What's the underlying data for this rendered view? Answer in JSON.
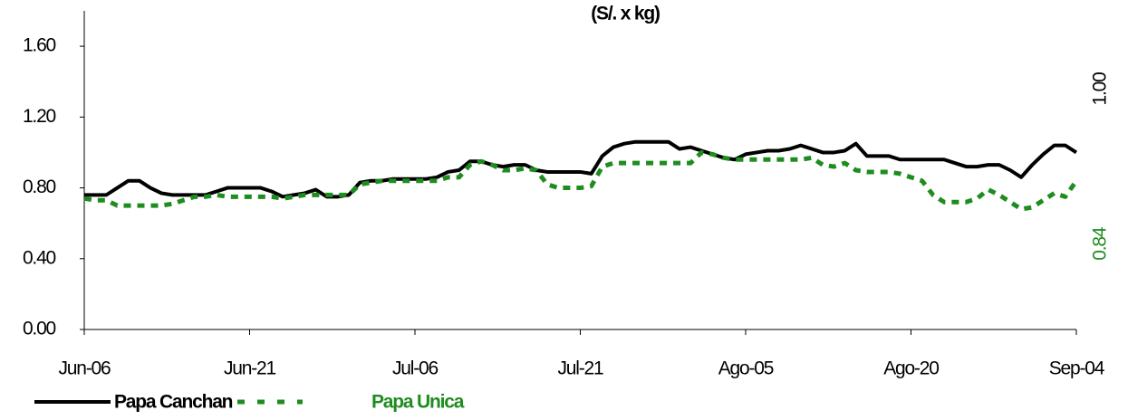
{
  "chart_data": {
    "type": "line",
    "title": "(S/. x kg)",
    "categories": [
      "Jun-06",
      null,
      null,
      null,
      null,
      null,
      null,
      null,
      null,
      null,
      null,
      null,
      null,
      null,
      null,
      "Jun-21",
      null,
      null,
      null,
      null,
      null,
      null,
      null,
      null,
      null,
      null,
      null,
      null,
      null,
      null,
      "Jul-06",
      null,
      null,
      null,
      null,
      null,
      null,
      null,
      null,
      null,
      null,
      null,
      null,
      null,
      null,
      "Jul-21",
      null,
      null,
      null,
      null,
      null,
      null,
      null,
      null,
      null,
      null,
      null,
      null,
      null,
      null,
      "Ago-05",
      null,
      null,
      null,
      null,
      null,
      null,
      null,
      null,
      null,
      null,
      null,
      null,
      null,
      null,
      "Ago-20",
      null,
      null,
      null,
      null,
      null,
      null,
      null,
      null,
      null,
      null,
      null,
      null,
      null,
      null,
      "Sep-04"
    ],
    "series": [
      {
        "name": "Papa Canchan",
        "color": "#000000",
        "dash": false,
        "values": [
          0.76,
          0.76,
          0.76,
          0.8,
          0.84,
          0.84,
          0.8,
          0.77,
          0.76,
          0.76,
          0.76,
          0.76,
          0.78,
          0.8,
          0.8,
          0.8,
          0.8,
          0.78,
          0.75,
          0.76,
          0.77,
          0.79,
          0.75,
          0.75,
          0.76,
          0.83,
          0.84,
          0.84,
          0.85,
          0.85,
          0.85,
          0.85,
          0.86,
          0.89,
          0.9,
          0.95,
          0.95,
          0.93,
          0.92,
          0.93,
          0.93,
          0.9,
          0.89,
          0.89,
          0.89,
          0.89,
          0.88,
          0.98,
          1.03,
          1.05,
          1.06,
          1.06,
          1.06,
          1.06,
          1.02,
          1.03,
          1.01,
          0.99,
          0.97,
          0.96,
          0.99,
          1.0,
          1.01,
          1.01,
          1.02,
          1.04,
          1.02,
          1.0,
          1.0,
          1.01,
          1.05,
          0.98,
          0.98,
          0.98,
          0.96,
          0.96,
          0.96,
          0.96,
          0.96,
          0.94,
          0.92,
          0.92,
          0.93,
          0.93,
          0.9,
          0.86,
          0.93,
          0.99,
          1.04,
          1.04,
          1.0
        ],
        "value_labels": [
          null,
          null,
          null,
          null,
          null,
          null,
          null,
          null,
          null,
          null,
          null,
          null,
          null,
          null,
          null,
          null,
          null,
          null,
          null,
          null,
          null,
          null,
          null,
          null,
          null,
          null,
          null,
          null,
          null,
          null,
          null,
          null,
          null,
          null,
          null,
          null,
          null,
          null,
          null,
          null,
          null,
          null,
          null,
          null,
          null,
          null,
          null,
          null,
          null,
          null,
          null,
          null,
          null,
          null,
          null,
          null,
          null,
          null,
          null,
          null,
          null,
          null,
          null,
          null,
          null,
          null,
          null,
          null,
          null,
          null,
          null,
          null,
          null,
          null,
          null,
          null,
          null,
          null,
          null,
          null,
          null,
          null,
          null,
          null,
          null,
          null,
          null,
          null,
          null,
          null,
          "1.00"
        ]
      },
      {
        "name": "Papa Unica",
        "color": "#1e8c1e",
        "dash": true,
        "values": [
          0.74,
          0.73,
          0.73,
          0.7,
          0.7,
          0.7,
          0.7,
          0.7,
          0.71,
          0.73,
          0.75,
          0.75,
          0.76,
          0.75,
          0.75,
          0.75,
          0.75,
          0.75,
          0.74,
          0.75,
          0.76,
          0.76,
          0.76,
          0.76,
          0.76,
          0.82,
          0.83,
          0.84,
          0.84,
          0.84,
          0.84,
          0.84,
          0.84,
          0.86,
          0.86,
          0.93,
          0.95,
          0.93,
          0.9,
          0.9,
          0.91,
          0.9,
          0.82,
          0.8,
          0.8,
          0.8,
          0.81,
          0.92,
          0.94,
          0.94,
          0.94,
          0.94,
          0.94,
          0.94,
          0.94,
          0.94,
          1.0,
          0.99,
          0.97,
          0.96,
          0.96,
          0.96,
          0.96,
          0.96,
          0.96,
          0.96,
          0.97,
          0.93,
          0.92,
          0.94,
          0.9,
          0.89,
          0.89,
          0.89,
          0.88,
          0.86,
          0.84,
          0.76,
          0.72,
          0.72,
          0.72,
          0.74,
          0.79,
          0.76,
          0.72,
          0.68,
          0.69,
          0.73,
          0.77,
          0.75,
          0.84
        ],
        "value_labels": [
          null,
          null,
          null,
          null,
          null,
          null,
          null,
          null,
          null,
          null,
          null,
          null,
          null,
          null,
          null,
          null,
          null,
          null,
          null,
          null,
          null,
          null,
          null,
          null,
          null,
          null,
          null,
          null,
          null,
          null,
          null,
          null,
          null,
          null,
          null,
          null,
          null,
          null,
          null,
          null,
          null,
          null,
          null,
          null,
          null,
          null,
          null,
          null,
          null,
          null,
          null,
          null,
          null,
          null,
          null,
          null,
          null,
          null,
          null,
          null,
          null,
          null,
          null,
          null,
          null,
          null,
          null,
          null,
          null,
          null,
          null,
          null,
          null,
          null,
          null,
          null,
          null,
          null,
          null,
          null,
          null,
          null,
          null,
          null,
          null,
          null,
          null,
          null,
          null,
          null,
          "0.84"
        ]
      }
    ],
    "ylim": [
      0,
      1.8
    ],
    "yticks": [
      {
        "value": 0,
        "label": "0.00"
      },
      {
        "value": 0.4,
        "label": "0.40"
      },
      {
        "value": 0.8,
        "label": "0.80"
      },
      {
        "value": 1.2,
        "label": "1.20"
      },
      {
        "value": 1.6,
        "label": "1.60"
      }
    ],
    "grid": false
  }
}
